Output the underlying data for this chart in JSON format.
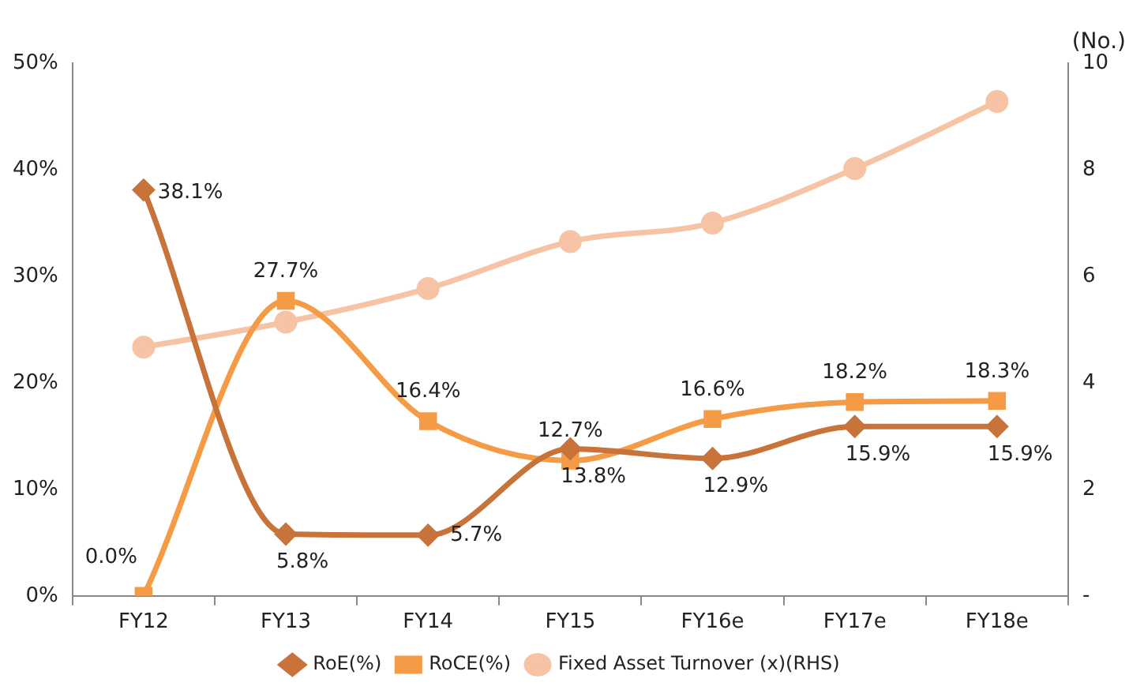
{
  "chart_data": {
    "type": "line",
    "categories": [
      "FY12",
      "FY13",
      "FY14",
      "FY15",
      "FY16e",
      "FY17e",
      "FY18e"
    ],
    "y2label": "(No.)",
    "series": [
      {
        "name": "RoE(%)",
        "color": "#c8733a",
        "marker": "diamond",
        "values": [
          38.1,
          5.8,
          5.7,
          13.8,
          12.9,
          15.9,
          15.9
        ],
        "value_labels": [
          "38.1%",
          "5.8%",
          "5.7%",
          "13.8%",
          "12.9%",
          "15.9%",
          "15.9%"
        ]
      },
      {
        "name": "RoCE(%)",
        "color": "#f59a45",
        "marker": "square",
        "values": [
          0.0,
          27.7,
          16.4,
          12.7,
          16.6,
          18.2,
          18.3
        ],
        "value_labels": [
          "0.0%",
          "27.7%",
          "16.4%",
          "12.7%",
          "16.6%",
          "18.2%",
          "18.3%"
        ]
      },
      {
        "name": "Fixed Asset Turnover (x)(RHS)",
        "color": "#f7c3a5",
        "marker": "circle",
        "axis": "y2",
        "values": [
          4.67,
          5.14,
          5.77,
          6.65,
          7.0,
          8.02,
          9.28
        ]
      }
    ],
    "ylim": [
      0,
      50
    ],
    "yticks": [
      {
        "value": 0,
        "label": "0%"
      },
      {
        "value": 10,
        "label": "10%"
      },
      {
        "value": 20,
        "label": "20%"
      },
      {
        "value": 30,
        "label": "30%"
      },
      {
        "value": 40,
        "label": "40%"
      },
      {
        "value": 50,
        "label": "50%"
      }
    ],
    "y2lim": [
      0,
      10
    ],
    "y2ticks": [
      {
        "value": 0,
        "label": "-"
      },
      2,
      4,
      6,
      8,
      10
    ],
    "grid": false,
    "legend": "bottom",
    "line_style": "solid"
  }
}
